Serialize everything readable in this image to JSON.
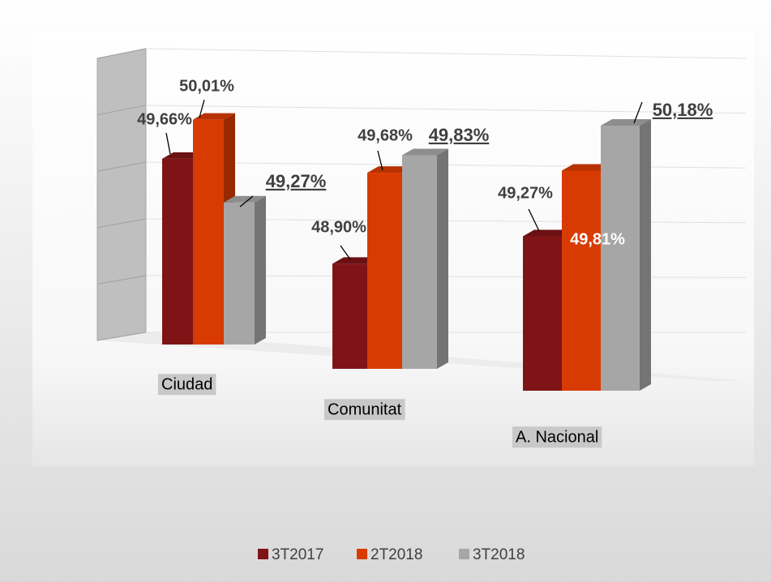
{
  "chart_data": {
    "type": "bar3d",
    "categories": [
      "Ciudad",
      "Comunitat",
      "A. Nacional"
    ],
    "series": [
      {
        "name": "3T2017",
        "color": "#7f1416",
        "values": [
          49.66,
          48.9,
          49.27
        ],
        "value_labels": [
          "49,66%",
          "48,90%",
          "49,27%"
        ]
      },
      {
        "name": "2T2018",
        "color": "#d83b01",
        "values": [
          50.01,
          49.68,
          49.81
        ],
        "value_labels": [
          "50,01%",
          "49,68%",
          "49,81%"
        ]
      },
      {
        "name": "3T2018",
        "color": "#a6a6a6",
        "values": [
          49.27,
          49.83,
          50.18
        ],
        "value_labels": [
          "49,27%",
          "49,83%",
          "50,18%"
        ]
      }
    ],
    "ylim": [
      48,
      50.5
    ],
    "grid": true,
    "legend": "bottom"
  }
}
